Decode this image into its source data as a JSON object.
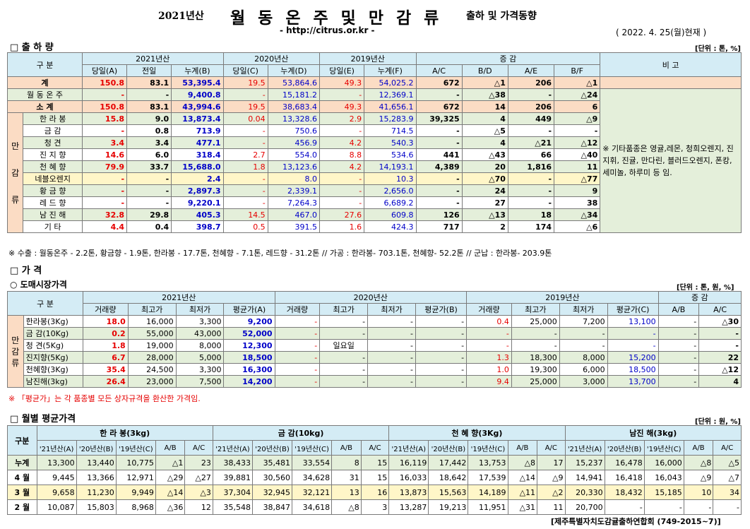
{
  "header": {
    "year": "2021년산",
    "title": "월 동 온 주 및 만 감 류",
    "subtitle": "출하 및 가격동향",
    "url": "- http://citrus.or.kr -",
    "as_of": "( 2022. 4. 25(월)현재 )"
  },
  "shipment": {
    "section_title": "□ 출 하 량",
    "unit": "[단위 : 톤, %]",
    "head1": [
      "구     분",
      "2021년산",
      "2020년산",
      "2019년산",
      "증     감",
      "비  고"
    ],
    "head2": [
      "당일(A)",
      "전일",
      "누계(B)",
      "당일(C)",
      "누계(D)",
      "당일(E)",
      "누계(F)",
      "A/C",
      "B/D",
      "A/E",
      "B/F"
    ],
    "group_label": [
      "만",
      "감",
      "류"
    ],
    "remark": "※ 기타품종은 영귤,레몬, 청희오렌지, 진지휘, 진귤, 만다린, 블러드오렌지, 폰캉,세미놀, 하루미 등 임.",
    "rows": [
      {
        "name": "계",
        "v": [
          "150.8",
          "83.1",
          "53,395.4",
          "19.5",
          "53,864.6",
          "49.3",
          "54,025.2",
          "672",
          "△1",
          "206",
          "△1"
        ]
      },
      {
        "name": "월 동 온 주",
        "v": [
          "-",
          "-",
          "9,400.8",
          "-",
          "15,181.2",
          "-",
          "12,369.1",
          "-",
          "△38",
          "-",
          "△24"
        ]
      },
      {
        "name": "소     계",
        "v": [
          "150.8",
          "83.1",
          "43,994.6",
          "19.5",
          "38,683.4",
          "49.3",
          "41,656.1",
          "672",
          "14",
          "206",
          "6"
        ]
      },
      {
        "name": "한 라 봉",
        "v": [
          "15.8",
          "9.0",
          "13,873.4",
          "0.04",
          "13,328.6",
          "2.9",
          "15,283.9",
          "39,325",
          "4",
          "449",
          "△9"
        ]
      },
      {
        "name": "금     감",
        "v": [
          "-",
          "0.8",
          "713.9",
          "-",
          "750.6",
          "-",
          "714.5",
          "-",
          "△5",
          "-",
          "-"
        ]
      },
      {
        "name": "청     견",
        "v": [
          "3.4",
          "3.4",
          "477.1",
          "-",
          "456.9",
          "4.2",
          "540.3",
          "-",
          "4",
          "△21",
          "△12"
        ]
      },
      {
        "name": "진 지 향",
        "v": [
          "14.6",
          "6.0",
          "318.4",
          "2.7",
          "554.0",
          "8.8",
          "534.6",
          "441",
          "△43",
          "66",
          "△40"
        ]
      },
      {
        "name": "천 혜 향",
        "v": [
          "79.9",
          "33.7",
          "15,688.0",
          "1.8",
          "13,123.6",
          "4.2",
          "14,193.1",
          "4,389",
          "20",
          "1,816",
          "11"
        ]
      },
      {
        "name": "네블오렌지",
        "v": [
          "-",
          "-",
          "2.4",
          "-",
          "8.0",
          "-",
          "10.3",
          "-",
          "△70",
          "-",
          "△77"
        ]
      },
      {
        "name": "황 금 향",
        "v": [
          "-",
          "-",
          "2,897.3",
          "-",
          "2,339.1",
          "-",
          "2,656.0",
          "-",
          "24",
          "-",
          "9"
        ]
      },
      {
        "name": "레 드 향",
        "v": [
          "-",
          "-",
          "9,220.1",
          "-",
          "7,264.3",
          "-",
          "6,689.2",
          "-",
          "27",
          "-",
          "38"
        ]
      },
      {
        "name": "남 진 해",
        "v": [
          "32.8",
          "29.8",
          "405.3",
          "14.5",
          "467.0",
          "27.6",
          "609.8",
          "126",
          "△13",
          "18",
          "△34"
        ]
      },
      {
        "name": "기     타",
        "v": [
          "4.4",
          "0.4",
          "398.7",
          "0.5",
          "391.5",
          "1.6",
          "424.3",
          "717",
          "2",
          "174",
          "△6"
        ]
      }
    ],
    "note": "※ 수출 : 월동온주 - 2.2톤, 황금향 - 1.9톤, 한라봉 - 17.7톤, 천혜향 - 7.1톤, 레드향 - 31.2톤 // 가공 : 한라봉- 703.1톤, 천혜향- 52.2톤 // 군납 : 한라봉- 203.9톤"
  },
  "price": {
    "section_title": "□ 가     격",
    "sub_title": "○ 도매시장가격",
    "unit": "[단위 : 톤, 원, %]",
    "head1": [
      "구     분",
      "2021년산",
      "2020년산",
      "2019년산",
      "증     감"
    ],
    "head2": [
      "거래량",
      "최고가",
      "최저가",
      "평균가(A)",
      "거래량",
      "최고가",
      "최저가",
      "평균가(B)",
      "거래량",
      "최고가",
      "최저가",
      "평균가(C)",
      "A/B",
      "A/C"
    ],
    "group_label": [
      "만",
      "감",
      "류"
    ],
    "rows": [
      {
        "name": "한라봉(3Kg)",
        "v": [
          "18.0",
          "16,000",
          "3,300",
          "9,200",
          "-",
          "-",
          "-",
          "-",
          "0.4",
          "25,000",
          "7,200",
          "13,100",
          "-",
          "△30"
        ]
      },
      {
        "name": "금 감(10Kg)",
        "v": [
          "0.2",
          "55,000",
          "43,000",
          "52,000",
          "-",
          "-",
          "-",
          "-",
          "-",
          "-",
          "-",
          "-",
          "-",
          "-"
        ]
      },
      {
        "name": "청  견(5Kg)",
        "v": [
          "1.8",
          "19,000",
          "8,000",
          "12,300",
          "-",
          "일요일",
          "-",
          "-",
          "-",
          "-",
          "-",
          "-",
          "-",
          "-"
        ]
      },
      {
        "name": "진지향(5Kg)",
        "v": [
          "6.7",
          "28,000",
          "5,000",
          "18,500",
          "-",
          "-",
          "-",
          "-",
          "1.3",
          "18,300",
          "8,000",
          "15,200",
          "-",
          "22"
        ]
      },
      {
        "name": "천혜향(3Kg)",
        "v": [
          "35.4",
          "24,500",
          "3,300",
          "16,300",
          "-",
          "-",
          "-",
          "-",
          "1.0",
          "19,300",
          "6,000",
          "18,500",
          "-",
          "△12"
        ]
      },
      {
        "name": "남진해(3kg)",
        "v": [
          "26.4",
          "23,000",
          "7,500",
          "14,200",
          "-",
          "-",
          "-",
          "-",
          "9.4",
          "25,000",
          "3,000",
          "13,700",
          "-",
          "4"
        ]
      }
    ],
    "note": "※ 「평균가」는 각 품종별 모든 상자규격을 환산한 가격임."
  },
  "monthly": {
    "section_title": "□ 월별 평균가격",
    "unit": "[단위 : 원, %]",
    "row_head": "구분",
    "groups": [
      "한 라 봉(3kg)",
      "금     감(10kg)",
      "천 혜 향(3Kg)",
      "남진 해(3kg)"
    ],
    "cols": [
      "'21년산(A)",
      "'20년산(B)",
      "'19년산(C)",
      "A/B",
      "A/C"
    ],
    "rows": [
      {
        "name": "누계",
        "v": [
          "13,300",
          "13,440",
          "10,775",
          "△1",
          "23",
          "38,433",
          "35,481",
          "33,554",
          "8",
          "15",
          "16,119",
          "17,442",
          "13,753",
          "△8",
          "17",
          "15,237",
          "16,478",
          "16,000",
          "△8",
          "△5"
        ]
      },
      {
        "name": "4 월",
        "v": [
          "9,445",
          "13,366",
          "12,971",
          "△29",
          "△27",
          "39,881",
          "30,560",
          "34,628",
          "31",
          "15",
          "16,033",
          "18,642",
          "17,539",
          "△14",
          "△9",
          "14,941",
          "16,418",
          "16,043",
          "△9",
          "△7"
        ]
      },
      {
        "name": "3 월",
        "v": [
          "9,658",
          "11,230",
          "9,949",
          "△14",
          "△3",
          "37,304",
          "32,945",
          "32,121",
          "13",
          "16",
          "13,873",
          "15,563",
          "14,189",
          "△11",
          "△2",
          "20,330",
          "18,432",
          "15,185",
          "10",
          "34"
        ]
      },
      {
        "name": "2 월",
        "v": [
          "10,087",
          "15,803",
          "8,968",
          "△36",
          "12",
          "35,548",
          "38,847",
          "34,618",
          "△8",
          "3",
          "13,287",
          "19,213",
          "11,951",
          "△31",
          "11",
          "20,700",
          "-",
          "-",
          "-",
          "-"
        ]
      }
    ]
  },
  "footer": "[제주특별자치도감귤출하연합회 (749-2015~7)]"
}
